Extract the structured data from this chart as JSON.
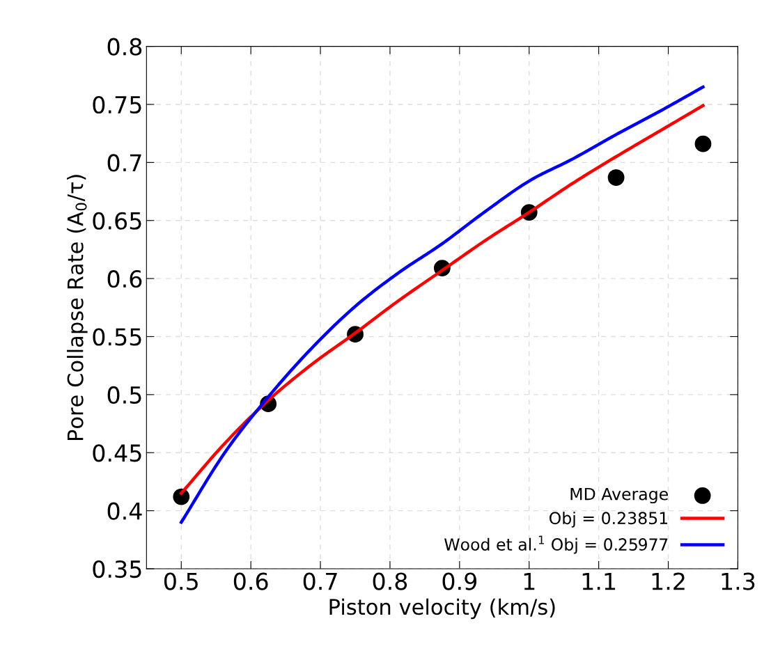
{
  "chart_data": {
    "type": "line",
    "xlabel": "Piston velocity (km/s)",
    "ylabel": "Pore Collapse Rate (A$_{0}$/τ)",
    "xlim": [
      0.45,
      1.3
    ],
    "ylim": [
      0.35,
      0.8
    ],
    "xticks": [
      0.5,
      0.6,
      0.7,
      0.8,
      0.9,
      1,
      1.1,
      1.2,
      1.3
    ],
    "yticks": [
      0.35,
      0.4,
      0.45,
      0.5,
      0.55,
      0.6,
      0.65,
      0.7,
      0.75,
      0.8
    ],
    "grid": true,
    "legend": "bottom right",
    "series": [
      {
        "name": "MD Average",
        "type": "scatter",
        "marker": "circle",
        "color": "#000000",
        "x": [
          0.5,
          0.625,
          0.75,
          0.875,
          1.0,
          1.125,
          1.25
        ],
        "values": [
          0.412,
          0.492,
          0.552,
          0.609,
          0.657,
          0.687,
          0.716
        ]
      },
      {
        "name": "Obj = 0.23851",
        "color": "#ff0000",
        "x": [
          0.5,
          0.5625,
          0.625,
          0.6875,
          0.75,
          0.8125,
          0.875,
          0.9375,
          1.0,
          1.0625,
          1.125,
          1.1875,
          1.25
        ],
        "values": [
          0.415,
          0.458,
          0.495,
          0.526,
          0.553,
          0.581,
          0.607,
          0.633,
          0.657,
          0.682,
          0.705,
          0.727,
          0.749
        ]
      },
      {
        "name": "Wood et al.$^{1}$ Obj = 0.25977",
        "color": "#0000ff",
        "x": [
          0.5,
          0.5625,
          0.625,
          0.6875,
          0.75,
          0.8125,
          0.875,
          0.9375,
          1.0,
          1.0625,
          1.125,
          1.1875,
          1.25
        ],
        "values": [
          0.39,
          0.45,
          0.498,
          0.54,
          0.576,
          0.605,
          0.63,
          0.658,
          0.684,
          0.703,
          0.724,
          0.744,
          0.765
        ]
      }
    ]
  }
}
